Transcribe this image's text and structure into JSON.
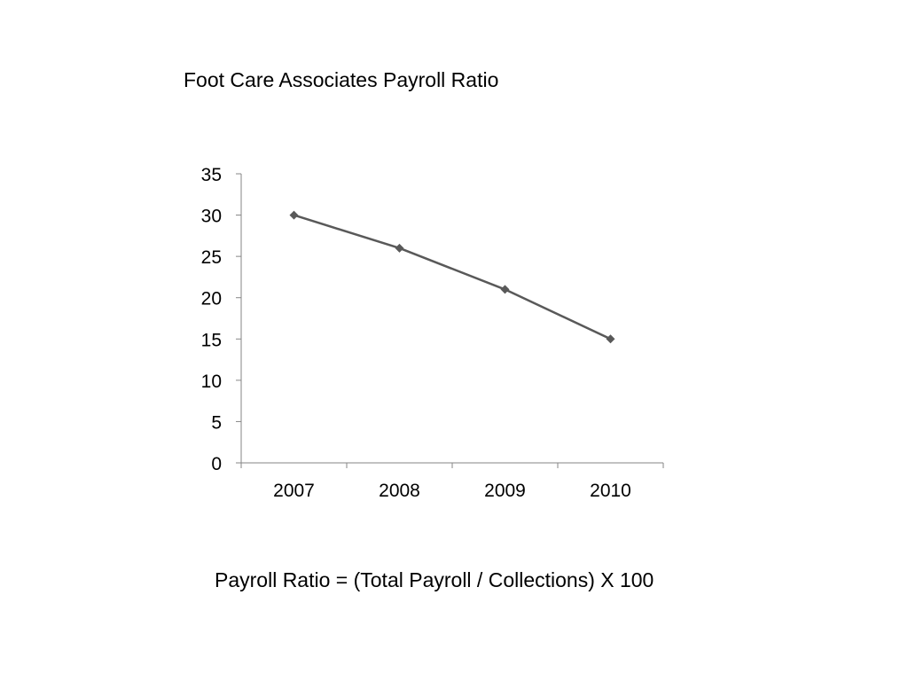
{
  "slide": {
    "title": "Foot Care Associates Payroll Ratio",
    "footnote": "Payroll Ratio = (Total Payroll / Collections) X 100"
  },
  "chart_data": {
    "type": "line",
    "title": "",
    "xlabel": "",
    "ylabel": "",
    "categories": [
      "2007",
      "2008",
      "2009",
      "2010"
    ],
    "series": [
      {
        "values": [
          30,
          26,
          21,
          15
        ]
      }
    ],
    "ylim": [
      0,
      35
    ],
    "yticks": [
      0,
      5,
      10,
      15,
      20,
      25,
      30,
      35
    ],
    "grid": false,
    "legend": "none",
    "line_color": "#595959",
    "marker": "diamond"
  }
}
